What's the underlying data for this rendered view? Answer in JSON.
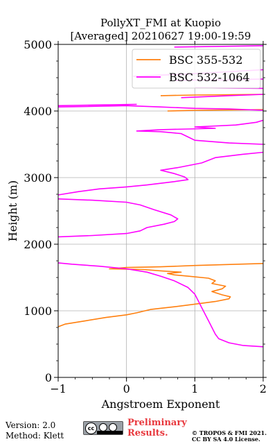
{
  "chart_data": {
    "type": "line",
    "title": "PollyXT_FMI at Kuopio",
    "subtitle": "[Averaged] 20210627 19:00-19:59",
    "xlabel": "Angstroem Exponent",
    "ylabel": "Height (m)",
    "xlim": [
      -1,
      2
    ],
    "ylim": [
      0,
      5000
    ],
    "xticks": [
      "−1",
      "0",
      "1",
      "2"
    ],
    "yticks": [
      "0",
      "1000",
      "2000",
      "3000",
      "4000",
      "5000"
    ],
    "grid": true,
    "legend_position": "top-right",
    "series": [
      {
        "name": "BSC 355-532",
        "color": "#ff7f0e",
        "segments": [
          [
            [
              -1.0,
              760
            ],
            [
              -0.9,
              800
            ],
            [
              -0.6,
              850
            ],
            [
              -0.3,
              900
            ],
            [
              0.0,
              940
            ],
            [
              0.15,
              970
            ],
            [
              0.35,
              1020
            ],
            [
              0.7,
              1060
            ],
            [
              1.0,
              1100
            ],
            [
              1.3,
              1140
            ],
            [
              1.5,
              1180
            ],
            [
              1.52,
              1210
            ],
            [
              1.4,
              1240
            ],
            [
              1.25,
              1290
            ],
            [
              1.4,
              1330
            ],
            [
              1.45,
              1370
            ],
            [
              1.25,
              1410
            ],
            [
              1.3,
              1450
            ],
            [
              1.2,
              1490
            ],
            [
              0.9,
              1520
            ],
            [
              0.7,
              1540
            ],
            [
              0.6,
              1560
            ],
            [
              0.8,
              1580
            ],
            [
              0.5,
              1600
            ],
            [
              0.25,
              1620
            ],
            [
              -0.25,
              1630
            ],
            [
              0.0,
              1650
            ],
            [
              0.5,
              1660
            ],
            [
              1.0,
              1680
            ],
            [
              2.0,
              1710
            ]
          ],
          [
            [
              0.5,
              4230
            ],
            [
              1.0,
              4240
            ],
            [
              2.0,
              4250
            ]
          ],
          [
            [
              0.6,
              4000
            ],
            [
              1.0,
              4010
            ],
            [
              2.0,
              4020
            ]
          ]
        ]
      },
      {
        "name": "BSC 532-1064",
        "color": "#ff00ff",
        "segments": [
          [
            [
              2.0,
              460
            ],
            [
              1.7,
              480
            ],
            [
              1.5,
              520
            ],
            [
              1.35,
              580
            ],
            [
              1.3,
              650
            ],
            [
              1.25,
              750
            ],
            [
              1.2,
              850
            ],
            [
              1.15,
              950
            ],
            [
              1.1,
              1050
            ],
            [
              1.05,
              1150
            ],
            [
              1.0,
              1250
            ],
            [
              0.9,
              1350
            ],
            [
              0.7,
              1450
            ],
            [
              0.5,
              1520
            ],
            [
              0.3,
              1580
            ],
            [
              0.0,
              1630
            ],
            [
              -0.4,
              1670
            ],
            [
              -0.8,
              1700
            ],
            [
              -1.0,
              1720
            ]
          ],
          [
            [
              -1.0,
              2110
            ],
            [
              -0.5,
              2130
            ],
            [
              0.0,
              2160
            ],
            [
              0.2,
              2200
            ],
            [
              0.3,
              2250
            ],
            [
              0.55,
              2300
            ],
            [
              0.7,
              2340
            ],
            [
              0.75,
              2380
            ],
            [
              0.65,
              2440
            ],
            [
              0.4,
              2520
            ],
            [
              0.2,
              2590
            ],
            [
              0.0,
              2630
            ],
            [
              -0.5,
              2660
            ],
            [
              -1.0,
              2680
            ]
          ],
          [
            [
              -1.0,
              2740
            ],
            [
              -0.7,
              2790
            ],
            [
              -0.4,
              2830
            ],
            [
              0.0,
              2860
            ],
            [
              0.3,
              2890
            ],
            [
              0.7,
              2940
            ],
            [
              0.9,
              2970
            ],
            [
              0.85,
              3010
            ],
            [
              0.7,
              3060
            ],
            [
              0.5,
              3110
            ],
            [
              0.75,
              3150
            ],
            [
              1.1,
              3220
            ],
            [
              1.3,
              3300
            ],
            [
              1.7,
              3350
            ],
            [
              2.0,
              3380
            ]
          ],
          [
            [
              2.0,
              3500
            ],
            [
              1.5,
              3520
            ],
            [
              1.0,
              3560
            ],
            [
              0.9,
              3610
            ],
            [
              0.8,
              3660
            ],
            [
              0.5,
              3690
            ],
            [
              0.15,
              3700
            ],
            [
              0.5,
              3720
            ],
            [
              1.3,
              3740
            ],
            [
              1.0,
              3760
            ],
            [
              1.6,
              3790
            ],
            [
              1.9,
              3830
            ],
            [
              2.0,
              3860
            ]
          ],
          [
            [
              -1.0,
              4060
            ],
            [
              -0.5,
              4070
            ],
            [
              0.0,
              4080
            ],
            [
              0.5,
              4060
            ],
            [
              1.0,
              4040
            ],
            [
              1.5,
              4030
            ],
            [
              2.0,
              4010
            ]
          ],
          [
            [
              -1.0,
              4080
            ],
            [
              -0.5,
              4090
            ],
            [
              0.15,
              4100
            ]
          ],
          [
            [
              0.8,
              4200
            ],
            [
              1.5,
              4230
            ],
            [
              2.0,
              4250
            ]
          ],
          [
            [
              1.0,
              4350
            ],
            [
              2.0,
              4340
            ]
          ],
          [
            [
              0.7,
              4460
            ],
            [
              1.5,
              4470
            ],
            [
              2.0,
              4480
            ]
          ],
          [
            [
              0.1,
              4520
            ],
            [
              1.0,
              4560
            ],
            [
              2.0,
              4620
            ]
          ],
          [
            [
              0.7,
              4960
            ],
            [
              2.0,
              4980
            ]
          ]
        ]
      }
    ]
  },
  "footer": {
    "version": "Version: 2.0",
    "method": "Method: Klett",
    "badge_text": "cc",
    "preliminary_line1": "Preliminary",
    "preliminary_line2": "Results.",
    "copyright_line1": "© TROPOS & FMI 2021.",
    "copyright_line2": "CC BY SA 4.0 License."
  }
}
